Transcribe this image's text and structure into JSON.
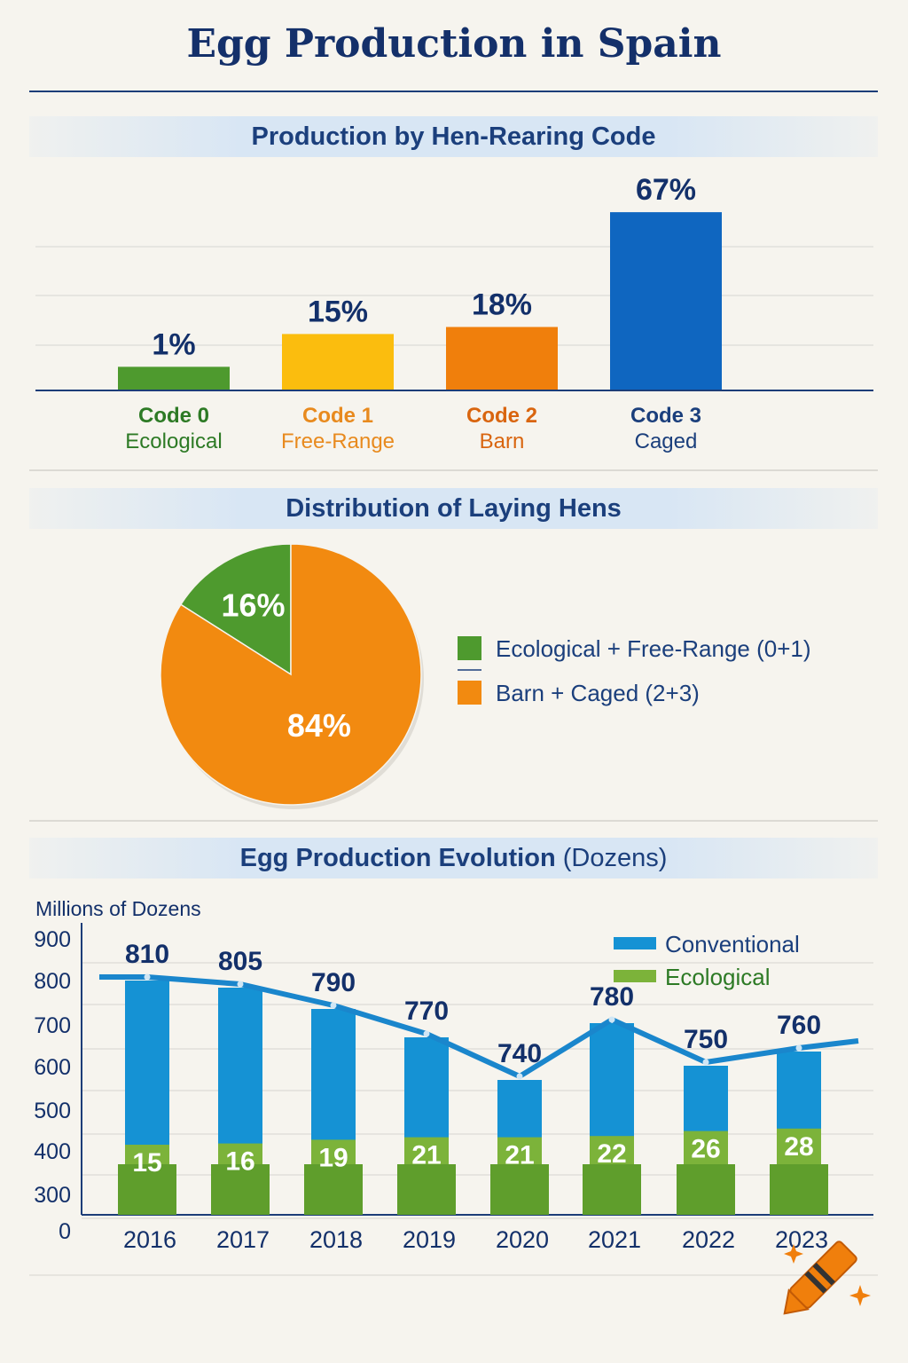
{
  "title": "Egg Production in Spain",
  "colors": {
    "title": "#14306a",
    "green": "#4e9a2e",
    "yellow": "#fbbd0e",
    "orange": "#f07f0c",
    "blue": "#0f66c0",
    "conventional": "#1592d4",
    "ecological": "#7cb33a",
    "legend_text": "#1b3f7c"
  },
  "chart_data": [
    {
      "type": "bar",
      "title": "Production by Hen-Rearing Code",
      "categories": [
        {
          "code": "Code 0",
          "name": "Ecological",
          "color": "#4e9a2e",
          "label_color": "#2d7a25"
        },
        {
          "code": "Code 1",
          "name": "Free-Range",
          "color": "#fbbd0e",
          "label_color": "#e88a1e"
        },
        {
          "code": "Code 2",
          "name": "Barn",
          "color": "#f07f0c",
          "label_color": "#d9650f"
        },
        {
          "code": "Code 3",
          "name": "Caged",
          "color": "#0f66c0",
          "label_color": "#1b3f7c"
        }
      ],
      "values": [
        1,
        15,
        18,
        67
      ],
      "value_labels": [
        "1%",
        "15%",
        "18%",
        "67%"
      ],
      "grid": true
    },
    {
      "type": "pie",
      "title": "Distribution of Laying Hens",
      "slices": [
        {
          "label": "Ecological + Free-Range (0+1)",
          "value": 16,
          "value_label": "16%",
          "color": "#4e9a2e"
        },
        {
          "label": "Barn + Caged (2+3)",
          "value": 84,
          "value_label": "84%",
          "color": "#f28a10"
        }
      ],
      "legend": "right"
    },
    {
      "type": "bar",
      "title": "Egg Production Evolution",
      "title_suffix": "(Dozens)",
      "ylabel": "Millions of Dozens",
      "yticks": [
        "900",
        "800",
        "700",
        "600",
        "500",
        "400",
        "300",
        "0"
      ],
      "categories": [
        "2016",
        "2017",
        "2018",
        "2019",
        "2020",
        "2021",
        "2022",
        "2023"
      ],
      "series": [
        {
          "name": "Conventional",
          "values": [
            810,
            805,
            790,
            770,
            740,
            780,
            750,
            760
          ],
          "color": "#1592d4",
          "style": "bar+line"
        },
        {
          "name": "Ecological",
          "values": [
            15,
            16,
            19,
            21,
            21,
            22,
            26,
            28
          ],
          "color": "#7cb33a",
          "style": "bar"
        }
      ],
      "legend": "top-right",
      "grid": true
    }
  ],
  "icons": {
    "crayon": "crayon-icon"
  }
}
